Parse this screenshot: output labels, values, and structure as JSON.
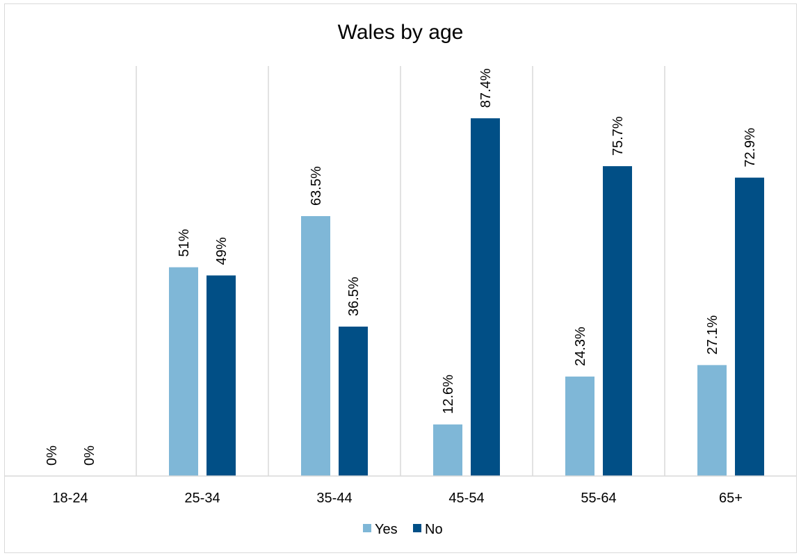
{
  "chart_data": {
    "type": "bar",
    "title": "Wales by age",
    "xlabel": "",
    "ylabel": "",
    "categories": [
      "18-24",
      "25-34",
      "35-44",
      "45-54",
      "55-64",
      "65+"
    ],
    "series": [
      {
        "name": "Yes",
        "color": "#7fb7d7",
        "values": [
          0,
          51,
          63.5,
          12.6,
          24.3,
          27.1
        ],
        "labels": [
          "0%",
          "51%",
          "63.5%",
          "12.6%",
          "24.3%",
          "27.1%"
        ]
      },
      {
        "name": "No",
        "color": "#014f86",
        "values": [
          0,
          49,
          36.5,
          87.4,
          75.7,
          72.9
        ],
        "labels": [
          "0%",
          "49%",
          "36.5%",
          "87.4%",
          "75.7%",
          "72.9%"
        ]
      }
    ],
    "ylim": [
      0,
      100
    ],
    "y_axis_visible": false,
    "gridlines": "vertical category separators",
    "legend_position": "bottom",
    "data_label_orientation": "vertical"
  }
}
